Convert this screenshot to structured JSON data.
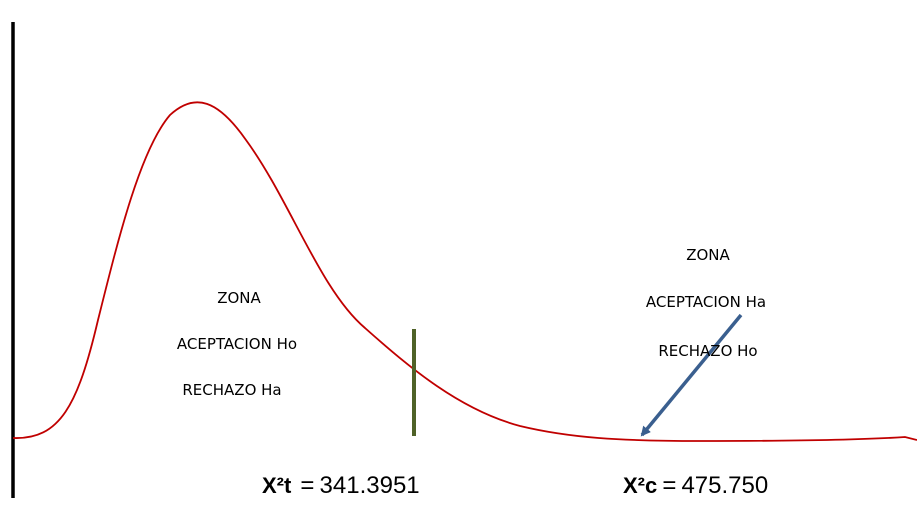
{
  "colors": {
    "curve": "#c00000",
    "critical_line": "#4f6228",
    "arrow": "#3a5f8f",
    "axis": "#000000"
  },
  "zone_left": {
    "line1": "ZONA",
    "line2": "ACEPTACION Ho",
    "line3": "RECHAZO Ha"
  },
  "zone_right": {
    "line1": "ZONA",
    "line2": "ACEPTACION Ha",
    "line3": "RECHAZO Ho"
  },
  "critical_value": {
    "symbol": "X²t",
    "equals": "=",
    "value": "341.3951"
  },
  "calculated_value": {
    "symbol": "X²c",
    "equals": "=",
    "value": " 475.750"
  }
}
